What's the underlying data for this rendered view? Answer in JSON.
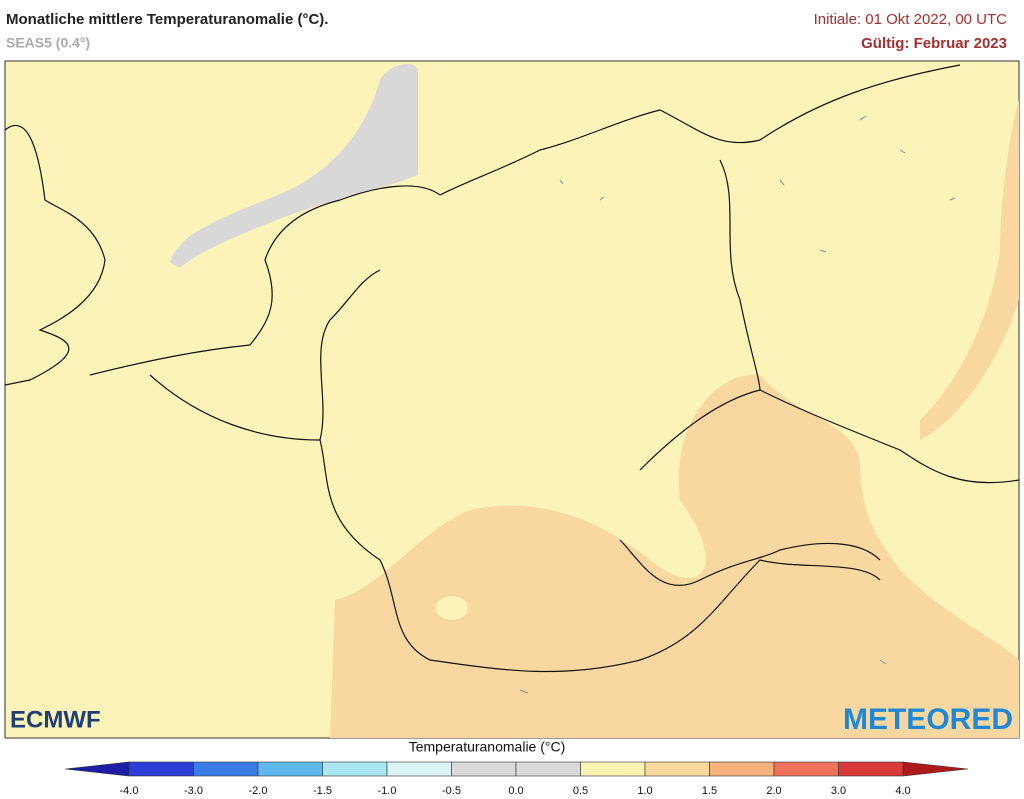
{
  "header": {
    "title": "Monatliche mittlere Temperaturanomalie (°C).",
    "subtitle": "SEAS5 (0.4°)",
    "initial": "Initiale: 01 Okt 2022, 00 UTC",
    "valid": "Gültig: Februar 2023"
  },
  "logos": {
    "left": "ECMWF",
    "right": "METEORED"
  },
  "legend": {
    "title": "Temperaturanomalie (°C)",
    "ticks": [
      "-4.0",
      "-3.0",
      "-2.0",
      "-1.5",
      "-1.0",
      "-0.5",
      "0.0",
      "0.5",
      "1.0",
      "1.5",
      "2.0",
      "3.0",
      "4.0"
    ],
    "colors": [
      "#2b3ed6",
      "#3b7be6",
      "#5cb8ee",
      "#a9e6f2",
      "#dcf5f4",
      "#d9d9d9",
      "#d9d9d9",
      "#fbf3b2",
      "#f9da9c",
      "#f5b27b",
      "#ee735a",
      "#d93b3b"
    ],
    "under_color": "#1c1ca6",
    "over_color": "#ae1a1a"
  }
}
